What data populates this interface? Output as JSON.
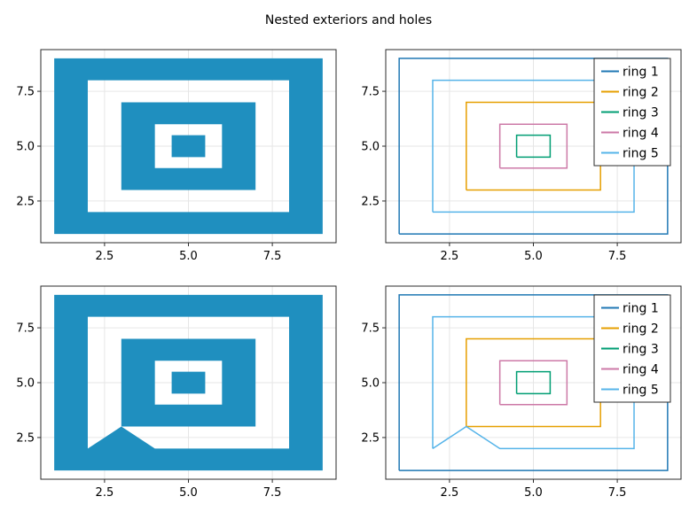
{
  "figure": {
    "title": "Nested exteriors and holes"
  },
  "colors": {
    "fill": "#1f8fbf",
    "grid": "#e6e6e6",
    "frame": "#2b2b2b",
    "ring1": "#1f77b4",
    "ring2": "#e69f00",
    "ring3": "#009e73",
    "ring4": "#cc79a7",
    "ring5": "#56b4e9"
  },
  "chart_data": [
    {
      "type": "polygon-fill",
      "id": "top-left",
      "title": "",
      "xlabel": "",
      "ylabel": "",
      "xlim": [
        0.6,
        9.4
      ],
      "ylim": [
        0.6,
        9.4
      ],
      "xticks": [
        2.5,
        5.0,
        7.5
      ],
      "xtick_labels": [
        "2.5",
        "5.0",
        "7.5"
      ],
      "yticks": [
        2.5,
        5.0,
        7.5
      ],
      "ytick_labels": [
        "2.5",
        "5.0",
        "7.5"
      ],
      "polygons": [
        {
          "exterior": [
            [
              1,
              1
            ],
            [
              9,
              1
            ],
            [
              9,
              9
            ],
            [
              1,
              9
            ]
          ],
          "holes": [
            [
              [
                2,
                2
              ],
              [
                8,
                2
              ],
              [
                8,
                8
              ],
              [
                2,
                8
              ]
            ]
          ]
        },
        {
          "exterior": [
            [
              3,
              3
            ],
            [
              7,
              3
            ],
            [
              7,
              7
            ],
            [
              3,
              7
            ]
          ],
          "holes": [
            [
              [
                4,
                4
              ],
              [
                6,
                4
              ],
              [
                6,
                6
              ],
              [
                4,
                6
              ]
            ]
          ]
        },
        {
          "exterior": [
            [
              4.5,
              4.5
            ],
            [
              5.5,
              4.5
            ],
            [
              5.5,
              5.5
            ],
            [
              4.5,
              5.5
            ]
          ],
          "holes": []
        }
      ]
    },
    {
      "type": "line",
      "id": "top-right",
      "title": "",
      "xlabel": "",
      "ylabel": "",
      "xlim": [
        0.6,
        9.4
      ],
      "ylim": [
        0.6,
        9.4
      ],
      "xticks": [
        2.5,
        5.0,
        7.5
      ],
      "xtick_labels": [
        "2.5",
        "5.0",
        "7.5"
      ],
      "yticks": [
        2.5,
        5.0,
        7.5
      ],
      "ytick_labels": [
        "2.5",
        "5.0",
        "7.5"
      ],
      "legend_position": "top-right",
      "series": [
        {
          "name": "ring 1",
          "color_key": "ring1",
          "points": [
            [
              1,
              1
            ],
            [
              9,
              1
            ],
            [
              9,
              9
            ],
            [
              1,
              9
            ],
            [
              1,
              1
            ]
          ]
        },
        {
          "name": "ring 2",
          "color_key": "ring2",
          "points": [
            [
              3,
              3
            ],
            [
              7,
              3
            ],
            [
              7,
              7
            ],
            [
              3,
              7
            ],
            [
              3,
              3
            ]
          ]
        },
        {
          "name": "ring 3",
          "color_key": "ring3",
          "points": [
            [
              4.5,
              4.5
            ],
            [
              5.5,
              4.5
            ],
            [
              5.5,
              5.5
            ],
            [
              4.5,
              5.5
            ],
            [
              4.5,
              4.5
            ]
          ]
        },
        {
          "name": "ring 4",
          "color_key": "ring4",
          "points": [
            [
              4,
              4
            ],
            [
              6,
              4
            ],
            [
              6,
              6
            ],
            [
              4,
              6
            ],
            [
              4,
              4
            ]
          ]
        },
        {
          "name": "ring 5",
          "color_key": "ring5",
          "points": [
            [
              2,
              2
            ],
            [
              8,
              2
            ],
            [
              8,
              8
            ],
            [
              2,
              8
            ],
            [
              2,
              2
            ]
          ]
        }
      ]
    },
    {
      "type": "polygon-fill",
      "id": "bottom-left",
      "title": "",
      "xlabel": "",
      "ylabel": "",
      "xlim": [
        0.6,
        9.4
      ],
      "ylim": [
        0.6,
        9.4
      ],
      "xticks": [
        2.5,
        5.0,
        7.5
      ],
      "xtick_labels": [
        "2.5",
        "5.0",
        "7.5"
      ],
      "yticks": [
        2.5,
        5.0,
        7.5
      ],
      "ytick_labels": [
        "2.5",
        "5.0",
        "7.5"
      ],
      "polygons": [
        {
          "exterior": [
            [
              1,
              1
            ],
            [
              9,
              1
            ],
            [
              9,
              9
            ],
            [
              1,
              9
            ]
          ],
          "holes": [
            [
              [
                2,
                2
              ],
              [
                3,
                3
              ],
              [
                4,
                2
              ],
              [
                8,
                2
              ],
              [
                8,
                8
              ],
              [
                2,
                8
              ]
            ]
          ]
        },
        {
          "exterior": [
            [
              3,
              3
            ],
            [
              7,
              3
            ],
            [
              7,
              7
            ],
            [
              3,
              7
            ]
          ],
          "holes": [
            [
              [
                4,
                4
              ],
              [
                6,
                4
              ],
              [
                6,
                6
              ],
              [
                4,
                6
              ]
            ]
          ]
        },
        {
          "exterior": [
            [
              4.5,
              4.5
            ],
            [
              5.5,
              4.5
            ],
            [
              5.5,
              5.5
            ],
            [
              4.5,
              5.5
            ]
          ],
          "holes": []
        }
      ]
    },
    {
      "type": "line",
      "id": "bottom-right",
      "title": "",
      "xlabel": "",
      "ylabel": "",
      "xlim": [
        0.6,
        9.4
      ],
      "ylim": [
        0.6,
        9.4
      ],
      "xticks": [
        2.5,
        5.0,
        7.5
      ],
      "xtick_labels": [
        "2.5",
        "5.0",
        "7.5"
      ],
      "yticks": [
        2.5,
        5.0,
        7.5
      ],
      "ytick_labels": [
        "2.5",
        "5.0",
        "7.5"
      ],
      "legend_position": "top-right",
      "series": [
        {
          "name": "ring 1",
          "color_key": "ring1",
          "points": [
            [
              1,
              1
            ],
            [
              9,
              1
            ],
            [
              9,
              9
            ],
            [
              1,
              9
            ],
            [
              1,
              1
            ]
          ]
        },
        {
          "name": "ring 2",
          "color_key": "ring2",
          "points": [
            [
              3,
              3
            ],
            [
              7,
              3
            ],
            [
              7,
              7
            ],
            [
              3,
              7
            ],
            [
              3,
              3
            ]
          ]
        },
        {
          "name": "ring 3",
          "color_key": "ring3",
          "points": [
            [
              4.5,
              4.5
            ],
            [
              5.5,
              4.5
            ],
            [
              5.5,
              5.5
            ],
            [
              4.5,
              5.5
            ],
            [
              4.5,
              4.5
            ]
          ]
        },
        {
          "name": "ring 4",
          "color_key": "ring4",
          "points": [
            [
              4,
              4
            ],
            [
              6,
              4
            ],
            [
              6,
              6
            ],
            [
              4,
              6
            ],
            [
              4,
              4
            ]
          ]
        },
        {
          "name": "ring 5",
          "color_key": "ring5",
          "points": [
            [
              2,
              2
            ],
            [
              3,
              3
            ],
            [
              4,
              2
            ],
            [
              8,
              2
            ],
            [
              8,
              8
            ],
            [
              2,
              8
            ],
            [
              2,
              2
            ]
          ]
        }
      ]
    }
  ]
}
